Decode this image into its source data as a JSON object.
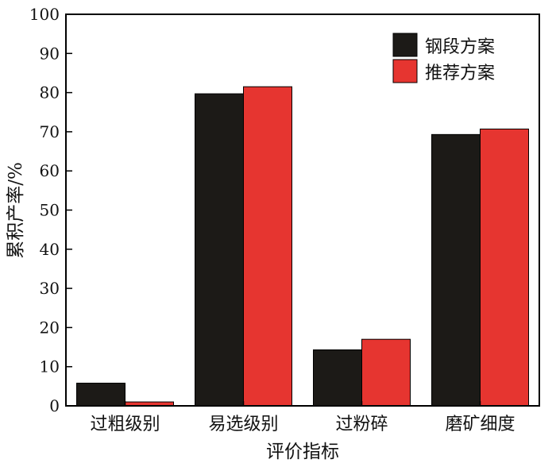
{
  "chart_data": {
    "type": "bar",
    "title": "",
    "xlabel": "评价指标",
    "ylabel": "累积产率/%",
    "ylim": [
      0,
      100
    ],
    "yticks": [
      0,
      10,
      20,
      30,
      40,
      50,
      60,
      70,
      80,
      90,
      100
    ],
    "categories": [
      "过粗级别",
      "易选级别",
      "过粉碎",
      "磨矿细度"
    ],
    "series": [
      {
        "name": "钢段方案",
        "color": "#1c1a17",
        "values": [
          5.8,
          79.7,
          14.3,
          69.3
        ]
      },
      {
        "name": "推荐方案",
        "color": "#e63530",
        "values": [
          1.0,
          81.5,
          17.0,
          70.7
        ]
      }
    ],
    "legend_position": "top-right",
    "grid": false
  }
}
